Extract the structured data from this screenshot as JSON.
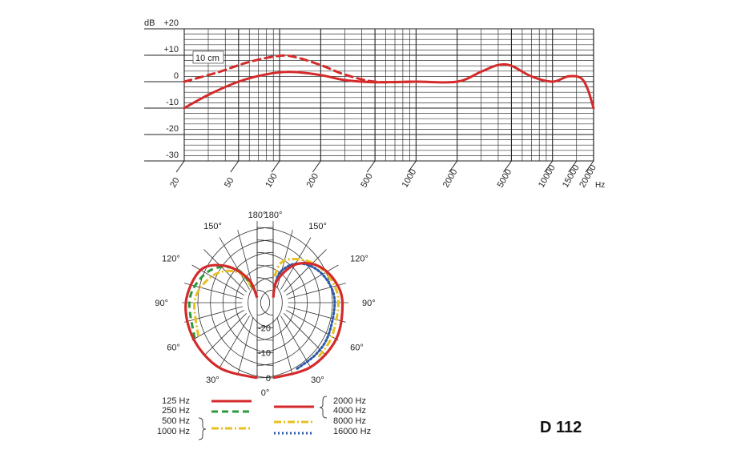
{
  "model_label": "D 112",
  "chart_data": [
    {
      "type": "line",
      "ylabel": "dB",
      "xunit": "Hz",
      "x_scale": "log",
      "xlim": [
        20,
        20000
      ],
      "ylim": [
        -30,
        20
      ],
      "x_ticks": [
        "20",
        "50",
        "100",
        "200",
        "500",
        "1000",
        "2000",
        "5000",
        "10000",
        "15000",
        "20000"
      ],
      "y_ticks": [
        "+20",
        "+10",
        "0",
        "-10",
        "-20",
        "-30"
      ],
      "annotations": [
        "10 cm"
      ],
      "colors": {
        "curve": "#d42a2a",
        "grid": "#222222"
      },
      "series": [
        {
          "name": "",
          "style": "solid",
          "points": [
            [
              20,
              -10
            ],
            [
              30,
              -5
            ],
            [
              50,
              0
            ],
            [
              80,
              2.8
            ],
            [
              120,
              3.7
            ],
            [
              200,
              2.5
            ],
            [
              300,
              0.6
            ],
            [
              500,
              -0.2
            ],
            [
              1000,
              0
            ],
            [
              2000,
              0
            ],
            [
              3000,
              3.8
            ],
            [
              4000,
              6.3
            ],
            [
              5000,
              6
            ],
            [
              7000,
              2
            ],
            [
              10000,
              0
            ],
            [
              13000,
              2
            ],
            [
              16000,
              1.5
            ],
            [
              18000,
              -2.5
            ],
            [
              20000,
              -10
            ]
          ]
        },
        {
          "name": "10 cm",
          "style": "dashed",
          "points": [
            [
              20,
              0
            ],
            [
              35,
              3.5
            ],
            [
              60,
              7.5
            ],
            [
              100,
              9.8
            ],
            [
              130,
              9.3
            ],
            [
              200,
              6.3
            ],
            [
              300,
              2.7
            ],
            [
              500,
              0
            ],
            [
              1000,
              0
            ]
          ]
        }
      ]
    },
    {
      "type": "polar",
      "r_ticks": [
        "0",
        "-10",
        "-20"
      ],
      "angle_labels": [
        "0°",
        "30°",
        "60°",
        "90°",
        "120°",
        "150°",
        "180°"
      ],
      "left_half": [
        {
          "group": "125 Hz",
          "style": "solid",
          "color": "#d42a2a",
          "points": [
            [
              0,
              0
            ],
            [
              30,
              0
            ],
            [
              60,
              -0.8
            ],
            [
              90,
              -1.6
            ],
            [
              120,
              -4
            ],
            [
              140,
              -11
            ],
            [
              160,
              -20
            ],
            [
              180,
              -28
            ]
          ]
        },
        {
          "group": "250 Hz",
          "style": "dashed",
          "color": "#2a9a3a",
          "points": [
            [
              60,
              -1.3
            ],
            [
              90,
              -3
            ],
            [
              110,
              -5
            ],
            [
              130,
              -8.5
            ],
            [
              150,
              -15
            ],
            [
              165,
              -24
            ]
          ]
        },
        {
          "group": "500 Hz, 1000 Hz",
          "style": "dash-dot",
          "color": "#e8c020",
          "points": [
            [
              60,
              -3
            ],
            [
              90,
              -5
            ],
            [
              110,
              -7.5
            ],
            [
              130,
              -11
            ],
            [
              150,
              -16.5
            ],
            [
              165,
              -25
            ]
          ]
        }
      ],
      "right_half": [
        {
          "group": "2000 Hz, 4000 Hz",
          "style": "solid",
          "color": "#d42a2a",
          "points": [
            [
              0,
              0
            ],
            [
              30,
              -0.3
            ],
            [
              60,
              -1
            ],
            [
              90,
              -2.4
            ],
            [
              110,
              -4
            ],
            [
              130,
              -7
            ],
            [
              150,
              -12.5
            ],
            [
              170,
              -21
            ],
            [
              180,
              -28
            ]
          ]
        },
        {
          "group": "8000 Hz",
          "style": "dash-dot",
          "color": "#e8c020",
          "points": [
            [
              40,
              -1.8
            ],
            [
              60,
              -3
            ],
            [
              90,
              -4
            ],
            [
              110,
              -5
            ],
            [
              130,
              -7
            ],
            [
              150,
              -10
            ],
            [
              168,
              -13.5
            ],
            [
              178,
              -20
            ]
          ]
        },
        {
          "group": "16000 Hz",
          "style": "dotted",
          "color": "#2a5aa8",
          "points": [
            [
              20,
              -2
            ],
            [
              40,
              -3.3
            ],
            [
              60,
              -4.5
            ],
            [
              90,
              -5.5
            ],
            [
              110,
              -6.5
            ],
            [
              130,
              -8.5
            ],
            [
              150,
              -12
            ],
            [
              168,
              -18
            ],
            [
              178,
              -26
            ]
          ]
        }
      ],
      "legend_left": [
        "125 Hz",
        "250 Hz",
        "500 Hz",
        "1000 Hz"
      ],
      "legend_right": [
        "2000 Hz",
        "4000 Hz",
        "8000 Hz",
        "16000 Hz"
      ]
    }
  ]
}
